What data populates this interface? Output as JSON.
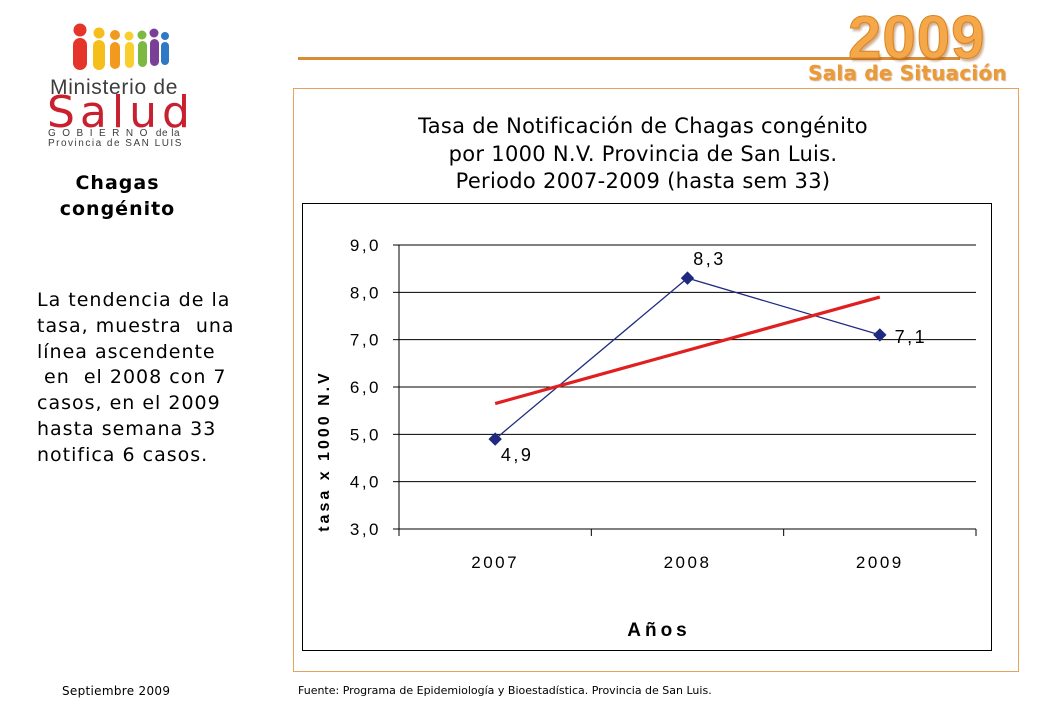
{
  "logo": {
    "ministerio": "Ministerio de",
    "salud": "Salud",
    "gobierno": "GOBIERNO",
    "de_la": "de la",
    "provincia": "Provincia de SAN LUIS",
    "icon": "people-figures-icon"
  },
  "header": {
    "year": "2009",
    "subtitle": "Sala de Situación"
  },
  "sidebar": {
    "topic_lines": [
      "Chagas",
      "congénito"
    ],
    "summary_lines": [
      "La tendencia de la",
      "tasa, muestra  una",
      "línea ascendente",
      " en  el 2008 con 7",
      "casos, en el 2009",
      "hasta semana 33",
      "notifica 6 casos."
    ]
  },
  "colors": {
    "accent_orange": "#E8952F",
    "panel_border": "#E3A35A",
    "logo_red": "#C8202F",
    "series_line": "#1F2A80",
    "trend_line": "#E02020"
  },
  "chart_data": {
    "type": "line",
    "title": [
      "Tasa de Notificación de Chagas congénito",
      "por 1000 N.V. Provincia de San Luis.",
      "Periodo 2007-2009 (hasta sem 33)"
    ],
    "xlabel": "Años",
    "ylabel": "tasa x 1000 N.V",
    "categories": [
      "2007",
      "2008",
      "2009"
    ],
    "series": [
      {
        "values": [
          4.9,
          8.3,
          7.1
        ],
        "data_labels": [
          "4,9",
          "8,3",
          "7,1"
        ],
        "marker": "diamond",
        "color": "#1F2A80"
      }
    ],
    "trendline": {
      "type": "linear",
      "values": [
        5.65,
        7.9
      ],
      "color": "#E02020"
    },
    "ylim": [
      3,
      9
    ],
    "yticks": [
      9,
      8,
      7,
      6,
      5,
      4,
      3
    ],
    "ytick_labels": [
      "9,0",
      "8,0",
      "7,0",
      "6,0",
      "5,0",
      "4,0",
      "3,0"
    ],
    "grid": true
  },
  "footer": {
    "date": "Septiembre 2009",
    "source": "Fuente: Programa de Epidemiología y Bioestadística. Provincia de San Luis."
  }
}
